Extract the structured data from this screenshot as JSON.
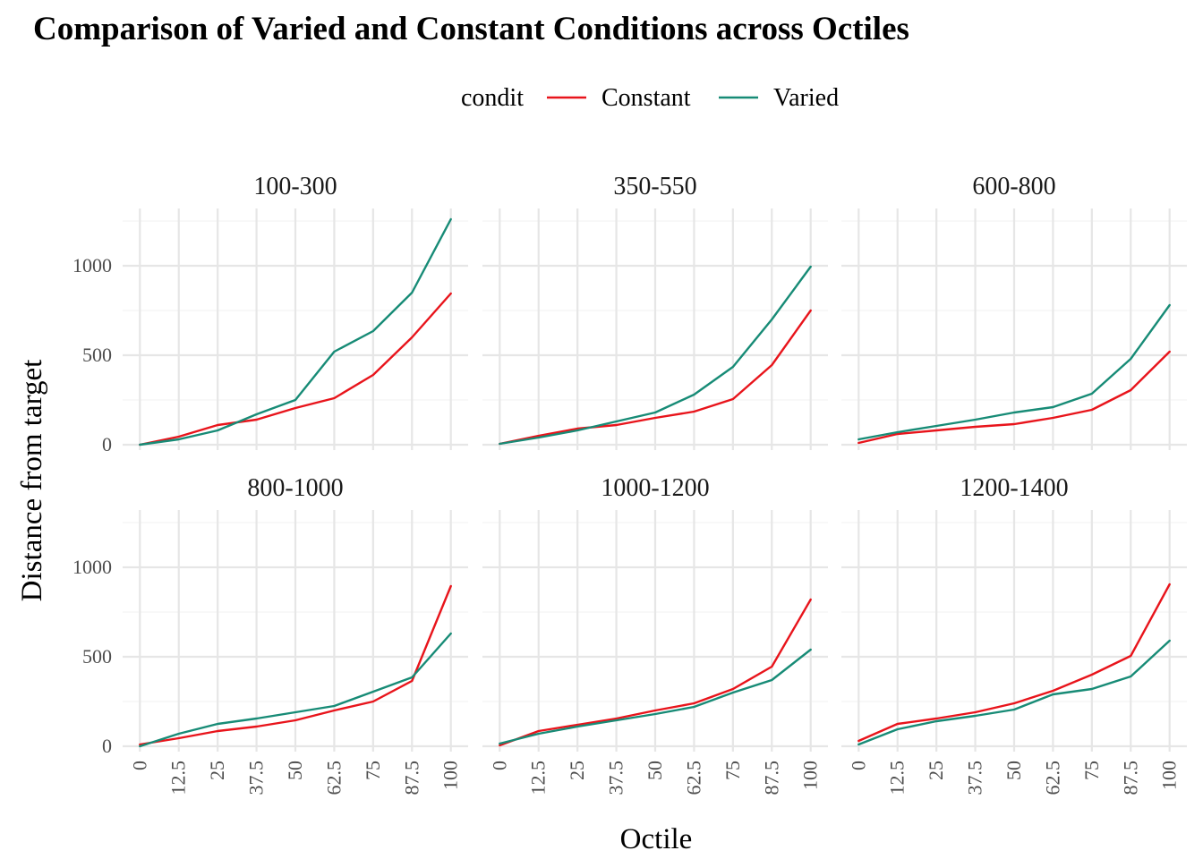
{
  "chart_data": {
    "type": "line",
    "title": "Comparison of Varied and Constant Conditions across Octiles",
    "xlabel": "Octile",
    "ylabel": "Distance from target",
    "legend": {
      "title": "condit",
      "position": "top"
    },
    "x": [
      0,
      12.5,
      25,
      37.5,
      50,
      62.5,
      75,
      87.5,
      100
    ],
    "x_tick_labels": [
      "0",
      "12.5",
      "25",
      "37.5",
      "50",
      "62.5",
      "75",
      "87.5",
      "100"
    ],
    "y_ticks": [
      0,
      500,
      1000
    ],
    "ylim": [
      -30,
      1320
    ],
    "grid": true,
    "facets": [
      {
        "label": "100-300",
        "series": [
          {
            "name": "Constant",
            "color": "#e8141b",
            "values": [
              0,
              45,
              110,
              140,
              205,
              260,
              390,
              600,
              845
            ]
          },
          {
            "name": "Varied",
            "color": "#178b76",
            "values": [
              0,
              30,
              80,
              170,
              250,
              520,
              635,
              850,
              1260
            ]
          }
        ]
      },
      {
        "label": "350-550",
        "series": [
          {
            "name": "Constant",
            "color": "#e8141b",
            "values": [
              5,
              50,
              90,
              110,
              150,
              185,
              255,
              445,
              750
            ]
          },
          {
            "name": "Varied",
            "color": "#178b76",
            "values": [
              5,
              40,
              80,
              130,
              180,
              280,
              435,
              700,
              995
            ]
          }
        ]
      },
      {
        "label": "600-800",
        "series": [
          {
            "name": "Constant",
            "color": "#e8141b",
            "values": [
              10,
              60,
              80,
              100,
              115,
              150,
              195,
              305,
              520
            ]
          },
          {
            "name": "Varied",
            "color": "#178b76",
            "values": [
              30,
              70,
              105,
              140,
              180,
              210,
              285,
              480,
              780
            ]
          }
        ]
      },
      {
        "label": "800-1000",
        "series": [
          {
            "name": "Constant",
            "color": "#e8141b",
            "values": [
              10,
              45,
              85,
              110,
              145,
              200,
              250,
              365,
              895
            ]
          },
          {
            "name": "Varied",
            "color": "#178b76",
            "values": [
              0,
              70,
              125,
              155,
              190,
              225,
              305,
              385,
              630
            ]
          }
        ]
      },
      {
        "label": "1000-1200",
        "series": [
          {
            "name": "Constant",
            "color": "#e8141b",
            "values": [
              5,
              85,
              120,
              155,
              200,
              240,
              320,
              445,
              820
            ]
          },
          {
            "name": "Varied",
            "color": "#178b76",
            "values": [
              15,
              70,
              110,
              145,
              180,
              220,
              300,
              370,
              540
            ]
          }
        ]
      },
      {
        "label": "1200-1400",
        "series": [
          {
            "name": "Constant",
            "color": "#e8141b",
            "values": [
              30,
              125,
              155,
              190,
              240,
              310,
              400,
              505,
              905
            ]
          },
          {
            "name": "Varied",
            "color": "#178b76",
            "values": [
              10,
              95,
              140,
              170,
              205,
              290,
              320,
              390,
              590
            ]
          }
        ]
      }
    ]
  }
}
